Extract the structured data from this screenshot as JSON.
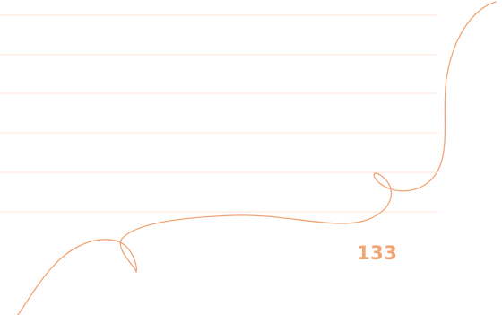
{
  "page": {
    "page_number": "133",
    "rule_color": "#fde5d5",
    "accent_color": "#f0a577",
    "ruled_line_count": 6
  }
}
